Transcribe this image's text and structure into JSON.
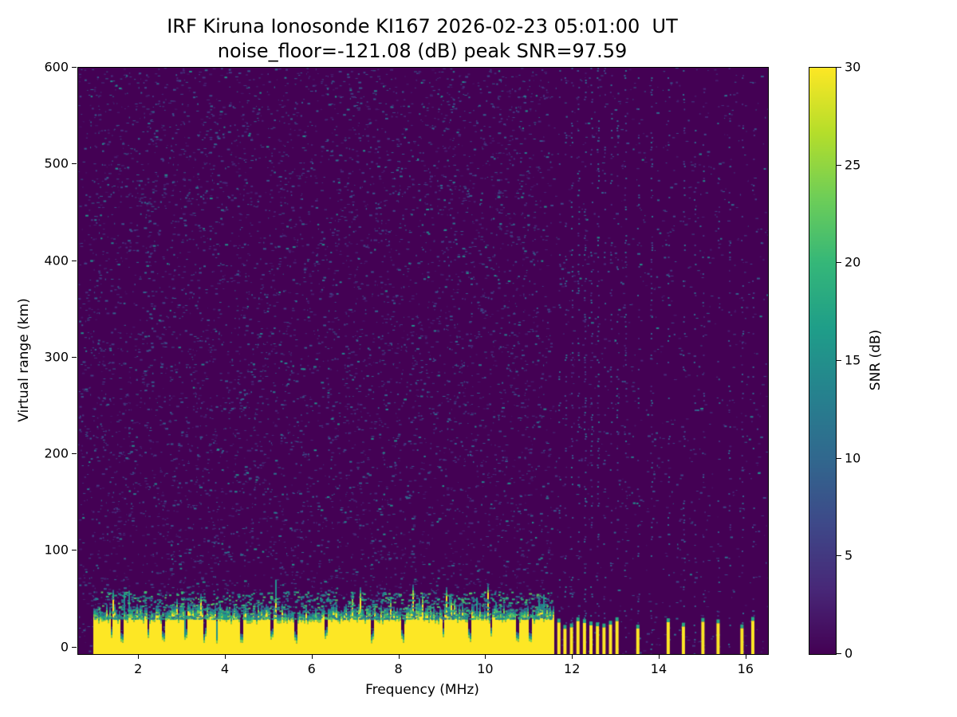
{
  "title": {
    "line1": "IRF Kiruna Ionosonde KI167 2026-02-23 05:01:00  UT",
    "line2": "noise_floor=-121.08 (dB) peak SNR=97.59"
  },
  "chart_data": {
    "type": "heatmap",
    "station": "IRF Kiruna Ionosonde KI167",
    "timestamp_ut": "2026-02-23 05:01:00 UT",
    "noise_floor_db": -121.08,
    "peak_snr_db": 97.59,
    "xlabel": "Frequency (MHz)",
    "ylabel": "Virtual range (km)",
    "colorbar_label": "SNR (dB)",
    "xlim": [
      0.6,
      16.5
    ],
    "ylim": [
      -7,
      600
    ],
    "x_ticks": [
      2,
      4,
      6,
      8,
      10,
      12,
      14,
      16
    ],
    "y_ticks": [
      0,
      100,
      200,
      300,
      400,
      500,
      600
    ],
    "colorbar_ticks": [
      0,
      5,
      10,
      15,
      20,
      25,
      30
    ],
    "colorbar_range": [
      0,
      30
    ],
    "colormap": "viridis",
    "viridis_stops": [
      "#440154",
      "#482878",
      "#3e4989",
      "#31688e",
      "#26828e",
      "#1f9e89",
      "#35b779",
      "#6ece58",
      "#b5de2b",
      "#fde725"
    ],
    "background_snr_db": 0,
    "ground_echo_band": {
      "freq_start_mhz": 0.95,
      "freq_end_mhz": 11.55,
      "mean_top_km": 30,
      "peak_snr_region_db": 30,
      "notch_freqs_mhz": [
        1.35,
        1.6,
        2.2,
        2.55,
        3.05,
        3.5,
        3.78,
        4.35,
        5.05,
        5.6,
        6.3,
        7.35,
        8.05,
        9.0,
        9.6,
        10.1,
        10.7,
        11.0
      ]
    },
    "sparse_echo_freqs_mhz": [
      11.68,
      11.82,
      11.97,
      12.12,
      12.27,
      12.42,
      12.57,
      12.72,
      12.87,
      13.02,
      13.5,
      14.2,
      14.55,
      15.0,
      15.35,
      15.9,
      16.15
    ],
    "interference_column_freqs_mhz": [
      11.68,
      11.82,
      11.97,
      12.12,
      12.27,
      12.42,
      12.57,
      12.72,
      12.87,
      13.02,
      13.2,
      13.5,
      13.8,
      14.2,
      14.55,
      14.8,
      15.0,
      15.35,
      15.6,
      15.9,
      16.15
    ],
    "noise_model": {
      "seed": 20260223,
      "speckle_count": 14000,
      "speckle_accept_low_freq": 0.72,
      "speckle_accept_high_freq": 0.22,
      "fringe_scatter_count": 1500
    }
  }
}
